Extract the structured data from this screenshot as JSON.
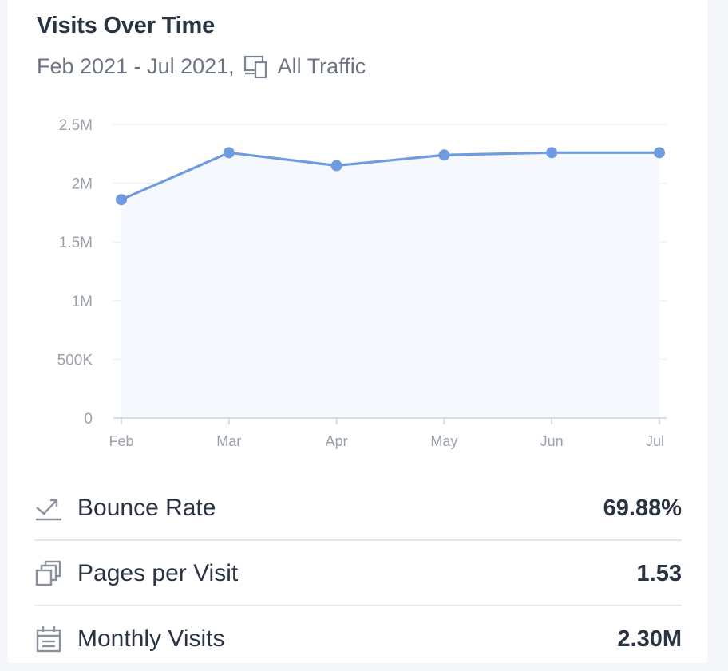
{
  "header": {
    "title": "Visits Over Time",
    "date_range": "Feb 2021 - Jul 2021,",
    "traffic_label": "All Traffic"
  },
  "chart_data": {
    "type": "area",
    "x": [
      "Feb",
      "Mar",
      "Apr",
      "May",
      "Jun",
      "Jul"
    ],
    "series": [
      {
        "values": [
          1860000,
          2260000,
          2150000,
          2240000,
          2260000,
          2260000
        ]
      }
    ],
    "ylim": [
      0,
      2500000
    ],
    "yticks": [
      0,
      500000,
      1000000,
      1500000,
      2000000,
      2500000
    ],
    "ytick_labels": [
      "0",
      "500K",
      "1M",
      "1.5M",
      "2M",
      "2.5M"
    ],
    "grid": true,
    "line_color": "#6f9be0",
    "fill_color": "#f5f8fd",
    "title": "",
    "xlabel": "",
    "ylabel": ""
  },
  "metrics": [
    {
      "icon": "bounce-rate-icon",
      "label": "Bounce Rate",
      "value": "69.88%"
    },
    {
      "icon": "pages-per-visit-icon",
      "label": "Pages per Visit",
      "value": "1.53"
    },
    {
      "icon": "monthly-visits-icon",
      "label": "Monthly Visits",
      "value": "2.30M"
    }
  ]
}
